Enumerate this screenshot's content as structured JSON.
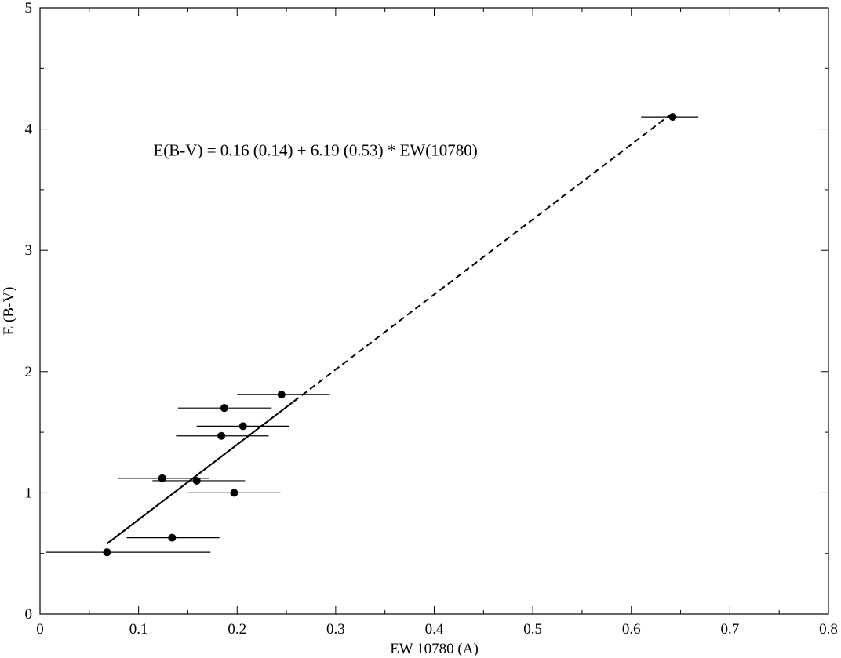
{
  "chart_data": {
    "type": "scatter",
    "title": "",
    "xlabel": "EW 10780 (A)",
    "ylabel": "E (B-V)",
    "xlim": [
      0,
      0.8
    ],
    "ylim": [
      0,
      5
    ],
    "x_ticks": [
      0,
      0.1,
      0.2,
      0.3,
      0.4,
      0.5,
      0.6,
      0.7,
      0.8
    ],
    "x_tick_labels": [
      "0",
      "0.1",
      "0.2",
      "0.3",
      "0.4",
      "0.5",
      "0.6",
      "0.7",
      "0.8"
    ],
    "y_ticks": [
      0,
      1,
      2,
      3,
      4,
      5
    ],
    "y_tick_labels": [
      "0",
      "1",
      "2",
      "3",
      "4",
      "5"
    ],
    "grid": false,
    "series": [
      {
        "marker": "filled-circle",
        "color": "#000000",
        "points": [
          {
            "x": 0.068,
            "y": 0.51,
            "xerr_low": 0.062,
            "xerr_high": 0.105
          },
          {
            "x": 0.134,
            "y": 0.63,
            "xerr_low": 0.046,
            "xerr_high": 0.048
          },
          {
            "x": 0.124,
            "y": 1.12,
            "xerr_low": 0.045,
            "xerr_high": 0.048
          },
          {
            "x": 0.159,
            "y": 1.1,
            "xerr_low": 0.045,
            "xerr_high": 0.049
          },
          {
            "x": 0.197,
            "y": 1.0,
            "xerr_low": 0.047,
            "xerr_high": 0.047
          },
          {
            "x": 0.184,
            "y": 1.47,
            "xerr_low": 0.046,
            "xerr_high": 0.048
          },
          {
            "x": 0.206,
            "y": 1.55,
            "xerr_low": 0.047,
            "xerr_high": 0.047
          },
          {
            "x": 0.187,
            "y": 1.7,
            "xerr_low": 0.047,
            "xerr_high": 0.048
          },
          {
            "x": 0.245,
            "y": 1.81,
            "xerr_low": 0.045,
            "xerr_high": 0.049
          },
          {
            "x": 0.642,
            "y": 4.1,
            "xerr_low": 0.032,
            "xerr_high": 0.026
          }
        ]
      }
    ],
    "fit": {
      "intercept": 0.16,
      "slope": 6.19,
      "solid_range": [
        0.068,
        0.26
      ],
      "dashed_range": [
        0.068,
        0.64
      ]
    },
    "annotations": [
      {
        "text": "E(B-V) = 0.16 (0.14) + 6.19 (0.53) * EW(10780)",
        "x": 0.115,
        "y": 3.78
      }
    ]
  }
}
